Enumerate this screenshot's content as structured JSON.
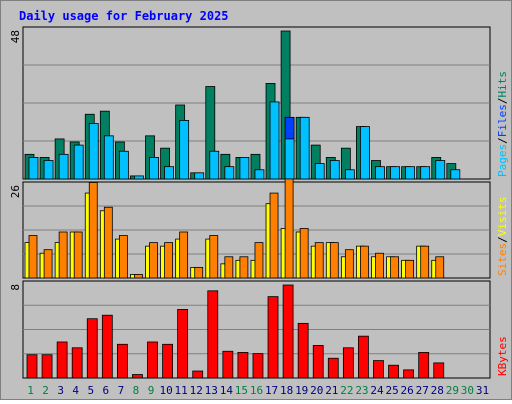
{
  "chart_data": {
    "type": "bar",
    "title": "Daily usage for February 2025",
    "days": [
      "1",
      "2",
      "3",
      "4",
      "5",
      "6",
      "7",
      "8",
      "9",
      "10",
      "11",
      "12",
      "13",
      "14",
      "15",
      "16",
      "17",
      "18",
      "19",
      "20",
      "21",
      "22",
      "23",
      "24",
      "25",
      "26",
      "27",
      "28",
      "29",
      "30",
      "31"
    ],
    "panels": {
      "hits_files_pages": {
        "ymax": 48,
        "ymax_label": "48",
        "legend": [
          {
            "label": "Pages",
            "color": "#00c0ff"
          },
          {
            "label": "Files",
            "color": "#0040ff"
          },
          {
            "label": "Hits",
            "color": "#008060"
          }
        ],
        "separator": "/",
        "series": [
          {
            "name": "Hits",
            "values": [
              8,
              7,
              13,
              12,
              21,
              22,
              12,
              1,
              14,
              10,
              24,
              2,
              30,
              8,
              7,
              8,
              31,
              48,
              20,
              11,
              7,
              10,
              17,
              6,
              4,
              4,
              4,
              7,
              5,
              0,
              0
            ]
          },
          {
            "name": "Pages",
            "values": [
              7,
              6,
              8,
              11,
              18,
              14,
              9,
              1,
              7,
              4,
              19,
              2,
              9,
              4,
              7,
              3,
              25,
              13,
              20,
              5,
              6,
              3,
              17,
              4,
              4,
              4,
              4,
              6,
              3,
              0,
              0
            ]
          },
          {
            "name": "Files",
            "values": [
              0,
              0,
              0,
              0,
              0,
              0,
              0,
              0,
              0,
              0,
              0,
              0,
              0,
              0,
              0,
              0,
              0,
              20,
              0,
              0,
              0,
              0,
              0,
              0,
              0,
              0,
              0,
              0,
              0,
              0,
              0
            ]
          }
        ]
      },
      "visits_sites": {
        "ymax": 26,
        "ymax_label": "26",
        "legend": [
          {
            "label": "Sites",
            "color": "#ff8000"
          },
          {
            "label": "Visits",
            "color": "#ffff00"
          }
        ],
        "separator": "/",
        "series": [
          {
            "name": "Visits",
            "values": [
              10,
              7,
              10,
              13,
              24,
              19,
              11,
              1,
              9,
              9,
              11,
              3,
              11,
              4,
              5,
              5,
              21,
              14,
              13,
              9,
              10,
              6,
              9,
              6,
              6,
              5,
              9,
              5,
              0,
              0,
              0
            ]
          },
          {
            "name": "Sites",
            "values": [
              12,
              8,
              13,
              13,
              27,
              20,
              12,
              1,
              10,
              10,
              13,
              3,
              12,
              6,
              6,
              10,
              24,
              28,
              14,
              10,
              10,
              8,
              9,
              7,
              6,
              5,
              9,
              6,
              0,
              0,
              0
            ]
          }
        ]
      },
      "kbytes": {
        "ymax": 8,
        "ymax_label": "8",
        "legend": [
          {
            "label": "KBytes",
            "color": "#ff0000"
          }
        ],
        "series": [
          {
            "name": "KBytes",
            "values": [
              2,
              2,
              3.1,
              2.6,
              5.1,
              5.4,
              2.9,
              0.3,
              3.1,
              2.9,
              5.9,
              0.6,
              7.5,
              2.3,
              2.2,
              2.1,
              7.0,
              8.0,
              4.7,
              2.8,
              1.7,
              2.6,
              3.6,
              1.5,
              1.1,
              0.7,
              2.2,
              1.3,
              0,
              0,
              0
            ]
          }
        ]
      }
    },
    "colors": {
      "hits": "#008060",
      "files": "#0040ff",
      "pages": "#00c0ff",
      "visits": "#ffff00",
      "sites": "#ff8000",
      "kbytes": "#ff0000",
      "title": "#0000ff",
      "weekday_label": "#000080",
      "weekend_label": "#008040",
      "plot_bg": "#c0c0c0",
      "gridline": "#808080"
    },
    "weekend_days": [
      "1",
      "2",
      "8",
      "9",
      "15",
      "16",
      "22",
      "23",
      "29",
      "30"
    ],
    "grid": true
  }
}
